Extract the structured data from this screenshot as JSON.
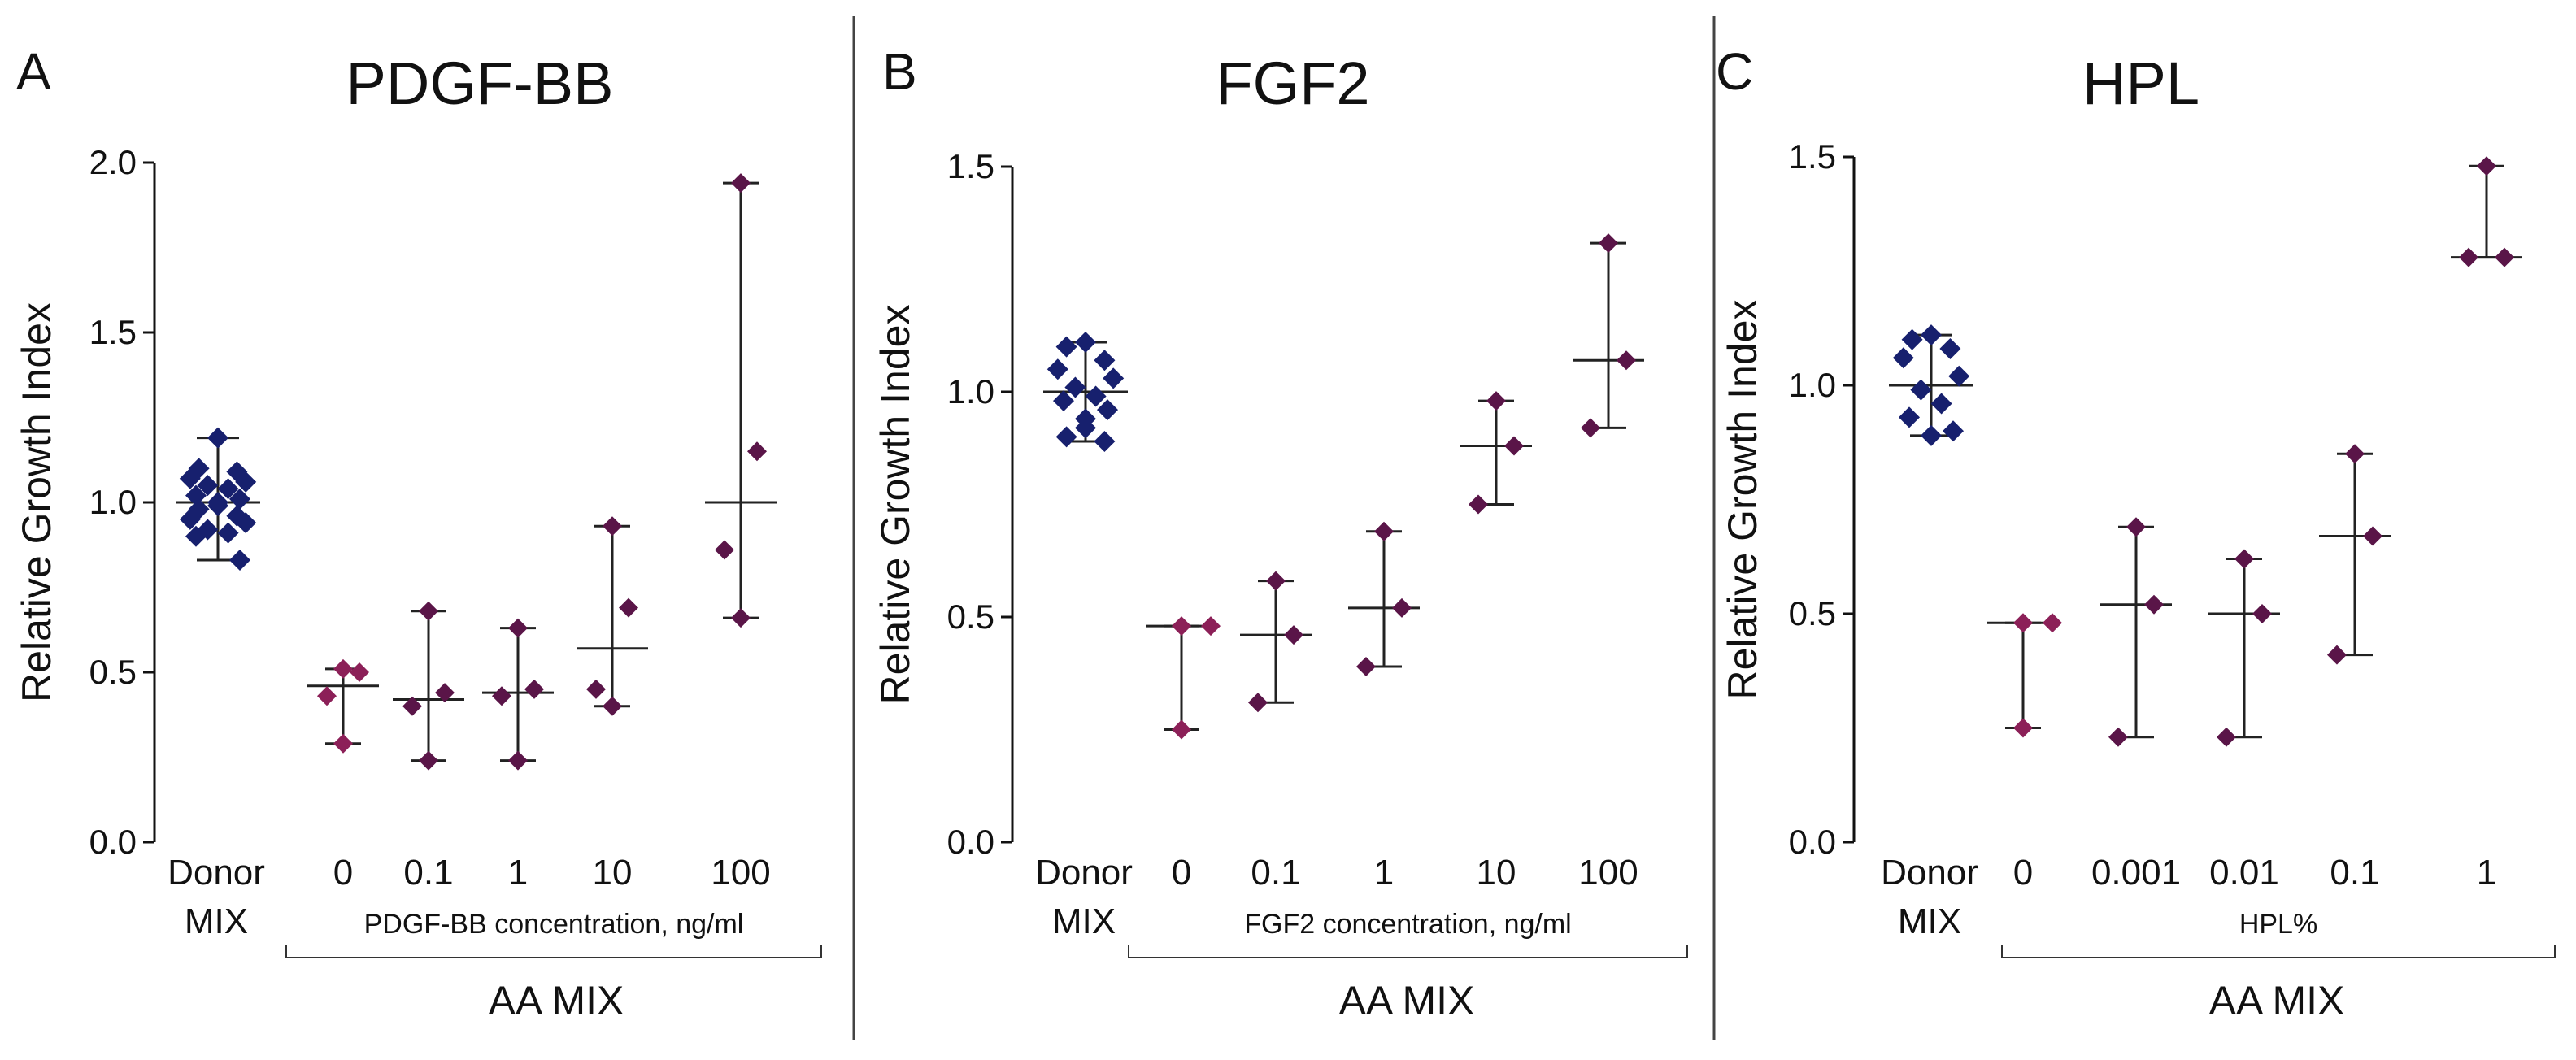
{
  "colors": {
    "donor": "#17206e",
    "aa": "#8c2058",
    "aa_dark": "#5a1548",
    "bar": "#222222",
    "divider": "#444444"
  },
  "chart_data": [
    {
      "type": "scatter",
      "panel_letter": "A",
      "title": "PDGF-BB",
      "ylabel": "Relative Growth Index",
      "ylim": [
        0,
        2.0
      ],
      "yticks": [
        "0.0",
        "0.5",
        "1.0",
        "1.5",
        "2.0"
      ],
      "categories": [
        "0",
        "0.1",
        "1",
        "10",
        "100"
      ],
      "donor_label": [
        "Donor",
        "MIX"
      ],
      "concentration_label": "PDGF-BB concentration, ng/ml",
      "group_label": "AA    MIX",
      "series": [
        {
          "name": "Donor MIX",
          "points": [
            1.19,
            1.1,
            1.09,
            1.07,
            1.06,
            1.05,
            1.04,
            1.02,
            1.01,
            1.0,
            0.99,
            0.98,
            0.96,
            0.95,
            0.94,
            0.92,
            0.91,
            0.9,
            0.83
          ],
          "median": 1.0,
          "range": [
            0.83,
            1.19
          ]
        },
        {
          "name": "0",
          "points": [
            0.51,
            0.5,
            0.43,
            0.29
          ],
          "median": 0.46,
          "range": [
            0.29,
            0.51
          ]
        },
        {
          "name": "0.1",
          "points": [
            0.68,
            0.44,
            0.4,
            0.24
          ],
          "median": 0.42,
          "range": [
            0.24,
            0.68
          ]
        },
        {
          "name": "1",
          "points": [
            0.63,
            0.45,
            0.43,
            0.24
          ],
          "median": 0.44,
          "range": [
            0.24,
            0.63
          ]
        },
        {
          "name": "10",
          "points": [
            0.93,
            0.69,
            0.45,
            0.4
          ],
          "median": 0.57,
          "range": [
            0.4,
            0.93
          ]
        },
        {
          "name": "100",
          "points": [
            1.94,
            1.15,
            0.86,
            0.66
          ],
          "median": 1.0,
          "range": [
            0.66,
            1.94
          ]
        }
      ]
    },
    {
      "type": "scatter",
      "panel_letter": "B",
      "title": "FGF2",
      "ylabel": "Relative Growth Index",
      "ylim": [
        0,
        1.5
      ],
      "yticks": [
        "0.0",
        "0.5",
        "1.0",
        "1.5"
      ],
      "categories": [
        "0",
        "0.1",
        "1",
        "10",
        "100"
      ],
      "donor_label": [
        "Donor",
        "MIX"
      ],
      "concentration_label": "FGF2 concentration, ng/ml",
      "group_label": "AA    MIX",
      "series": [
        {
          "name": "Donor MIX",
          "points": [
            1.11,
            1.1,
            1.07,
            1.05,
            1.03,
            1.01,
            0.99,
            0.98,
            0.96,
            0.94,
            0.92,
            0.9,
            0.89
          ],
          "median": 1.0,
          "range": [
            0.89,
            1.11
          ]
        },
        {
          "name": "0",
          "points": [
            0.48,
            0.48,
            0.25
          ],
          "median": 0.48,
          "range": [
            0.25,
            0.48
          ]
        },
        {
          "name": "0.1",
          "points": [
            0.58,
            0.46,
            0.31
          ],
          "median": 0.46,
          "range": [
            0.31,
            0.58
          ]
        },
        {
          "name": "1",
          "points": [
            0.69,
            0.52,
            0.39
          ],
          "median": 0.52,
          "range": [
            0.39,
            0.69
          ]
        },
        {
          "name": "10",
          "points": [
            0.98,
            0.88,
            0.75
          ],
          "median": 0.88,
          "range": [
            0.75,
            0.98
          ]
        },
        {
          "name": "100",
          "points": [
            1.33,
            1.07,
            0.92
          ],
          "median": 1.07,
          "range": [
            0.92,
            1.33
          ]
        }
      ]
    },
    {
      "type": "scatter",
      "panel_letter": "C",
      "title": "HPL",
      "ylabel": "Relative Growth Index",
      "ylim": [
        0,
        1.5
      ],
      "yticks": [
        "0.0",
        "0.5",
        "1.0",
        "1.5"
      ],
      "categories": [
        "0",
        "0.001",
        "0.01",
        "0.1",
        "1"
      ],
      "donor_label": [
        "Donor",
        "MIX"
      ],
      "concentration_label": "HPL%",
      "group_label": "AA    MIX",
      "series": [
        {
          "name": "Donor MIX",
          "points": [
            1.11,
            1.1,
            1.08,
            1.06,
            1.02,
            0.99,
            0.96,
            0.93,
            0.9,
            0.89
          ],
          "median": 1.0,
          "range": [
            0.89,
            1.11
          ]
        },
        {
          "name": "0",
          "points": [
            0.48,
            0.48,
            0.25
          ],
          "median": 0.48,
          "range": [
            0.25,
            0.48
          ]
        },
        {
          "name": "0.001",
          "points": [
            0.69,
            0.52,
            0.23
          ],
          "median": 0.52,
          "range": [
            0.23,
            0.69
          ]
        },
        {
          "name": "0.01",
          "points": [
            0.62,
            0.5,
            0.23
          ],
          "median": 0.5,
          "range": [
            0.23,
            0.62
          ]
        },
        {
          "name": "0.1",
          "points": [
            0.85,
            0.67,
            0.41
          ],
          "median": 0.67,
          "range": [
            0.41,
            0.85
          ]
        },
        {
          "name": "1",
          "points": [
            1.48,
            1.28,
            1.28
          ],
          "median": 1.28,
          "range": [
            1.28,
            1.48
          ]
        }
      ]
    }
  ]
}
